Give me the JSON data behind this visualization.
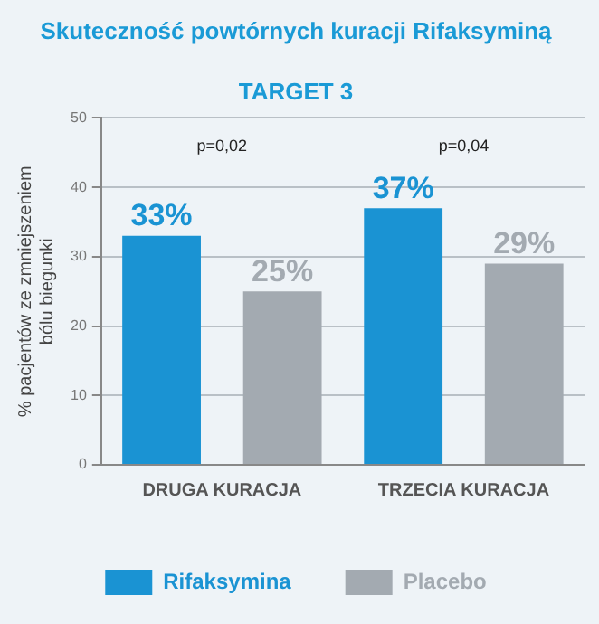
{
  "chart_data": {
    "type": "bar",
    "title": "Skuteczność powtórnych kuracji Rifaksyminą",
    "subtitle": "TARGET 3",
    "ylabel": "% pacjentów ze zmniejszeniem bólu biegunki",
    "categories": [
      "DRUGA KURACJA",
      "TRZECIA KURACJA"
    ],
    "series": [
      {
        "name": "Rifaksymina",
        "color": "#1a93d3",
        "values": [
          33,
          37
        ],
        "value_labels": [
          "33%",
          "37%"
        ]
      },
      {
        "name": "Placebo",
        "color": "#a3aab1",
        "values": [
          25,
          29
        ],
        "value_labels": [
          "25%",
          "29%"
        ]
      }
    ],
    "ylim": [
      0,
      50
    ],
    "yticks": [
      0,
      10,
      20,
      30,
      40,
      50
    ],
    "grid": "y",
    "legend": "bottom",
    "annotations": [
      "p=0,02",
      "p=0,04"
    ]
  }
}
